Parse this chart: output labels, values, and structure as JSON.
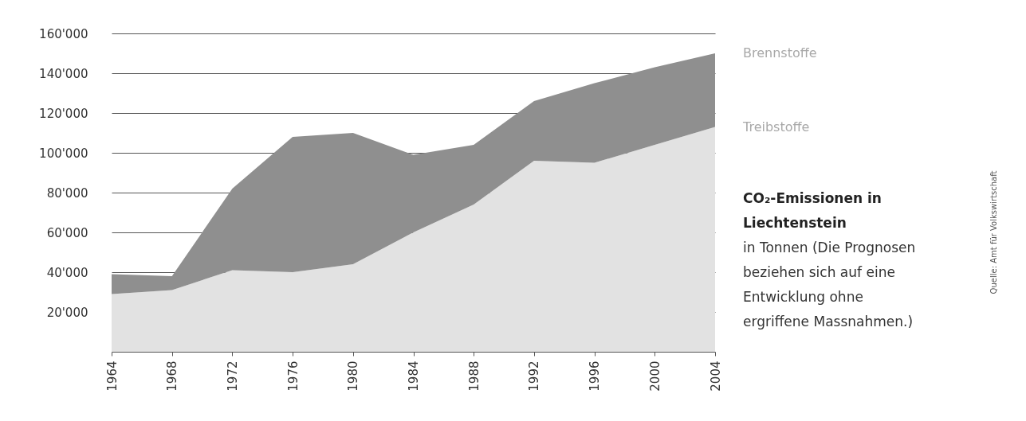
{
  "chart_data": {
    "type": "area",
    "title": "CO₂-Emissionen in Liechtenstein",
    "subtitle": "in Tonnen (Die Prognosen beziehen sich auf eine Entwicklung ohne ergriffene Massnahmen.)",
    "x": [
      1964,
      1968,
      1972,
      1976,
      1980,
      1984,
      1988,
      1992,
      1996,
      2000,
      2004
    ],
    "stacked": true,
    "series": [
      {
        "name": "Treibstoffe",
        "color": "#e2e2e2",
        "values": [
          29000,
          31000,
          41000,
          40000,
          44000,
          60000,
          74000,
          96000,
          95000,
          104000,
          113000
        ]
      },
      {
        "name": "Brennstoffe",
        "color": "#8f8f8f",
        "values": [
          10000,
          7000,
          41000,
          68000,
          66000,
          39000,
          30000,
          30000,
          40000,
          39000,
          37000
        ]
      }
    ],
    "xlim": [
      1964,
      2004
    ],
    "xticks": [
      1964,
      1968,
      1972,
      1976,
      1980,
      1984,
      1988,
      1992,
      1996,
      2000,
      2004
    ],
    "ylim": [
      0,
      160000
    ],
    "yticks": [
      {
        "value": 0,
        "label": null
      },
      {
        "value": 20000,
        "label": "20'000"
      },
      {
        "value": 40000,
        "label": "40'000"
      },
      {
        "value": 60000,
        "label": "60'000"
      },
      {
        "value": 80000,
        "label": "80'000"
      },
      {
        "value": 100000,
        "label": "100'000"
      },
      {
        "value": 120000,
        "label": "120'000"
      },
      {
        "value": 140000,
        "label": "140'000"
      },
      {
        "value": 160000,
        "label": "160'000"
      }
    ],
    "grid": true,
    "legend": false,
    "annotations": [
      "Quelle: Amt für Volkswirtschaft"
    ]
  }
}
